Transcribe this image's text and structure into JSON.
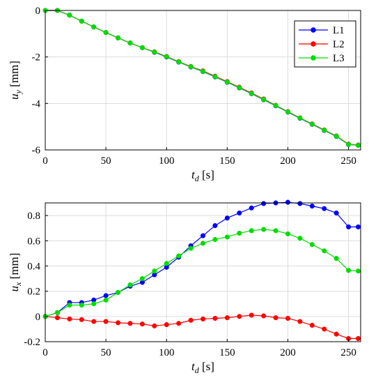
{
  "chart_data": [
    {
      "type": "line",
      "xlabel_main": "t",
      "xlabel_sub": "d",
      "xlabel_unit": "[s]",
      "ylabel_main": "u",
      "ylabel_sub": "y",
      "ylabel_unit": "[mm]",
      "xlim": [
        0,
        260
      ],
      "ylim": [
        -6,
        0
      ],
      "xticks": [
        0,
        50,
        100,
        150,
        200,
        250
      ],
      "yticks": [
        0,
        -2,
        -4,
        -6
      ],
      "grid": true,
      "legend": "top-right",
      "series": [
        {
          "name": "L1",
          "color": "#0000ff",
          "x": [
            0,
            10,
            20,
            30,
            40,
            50,
            60,
            70,
            80,
            90,
            100,
            110,
            120,
            130,
            140,
            150,
            160,
            170,
            180,
            190,
            200,
            210,
            220,
            230,
            240,
            250,
            258
          ],
          "y": [
            0,
            0,
            -0.2,
            -0.46,
            -0.71,
            -0.95,
            -1.18,
            -1.4,
            -1.6,
            -1.8,
            -2.0,
            -2.22,
            -2.43,
            -2.63,
            -2.86,
            -3.09,
            -3.33,
            -3.58,
            -3.84,
            -4.1,
            -4.37,
            -4.64,
            -4.9,
            -5.16,
            -5.42,
            -5.77,
            -5.8
          ]
        },
        {
          "name": "L2",
          "color": "#ff0000",
          "x": [
            0,
            10,
            20,
            30,
            40,
            50,
            60,
            70,
            80,
            90,
            100,
            110,
            120,
            130,
            140,
            150,
            160,
            170,
            180,
            190,
            200,
            210,
            220,
            230,
            240,
            250,
            258
          ],
          "y": [
            0,
            0,
            -0.2,
            -0.46,
            -0.71,
            -0.95,
            -1.18,
            -1.4,
            -1.6,
            -1.78,
            -1.98,
            -2.2,
            -2.41,
            -2.6,
            -2.83,
            -3.06,
            -3.3,
            -3.55,
            -3.81,
            -4.08,
            -4.35,
            -4.62,
            -4.88,
            -5.14,
            -5.4,
            -5.75,
            -5.79
          ]
        },
        {
          "name": "L3",
          "color": "#00dd00",
          "x": [
            0,
            10,
            20,
            30,
            40,
            50,
            60,
            70,
            80,
            90,
            100,
            110,
            120,
            130,
            140,
            150,
            160,
            170,
            180,
            190,
            200,
            210,
            220,
            230,
            240,
            250,
            258
          ],
          "y": [
            0,
            0,
            -0.2,
            -0.46,
            -0.71,
            -0.95,
            -1.18,
            -1.4,
            -1.6,
            -1.79,
            -1.99,
            -2.21,
            -2.42,
            -2.62,
            -2.85,
            -3.08,
            -3.32,
            -3.57,
            -3.83,
            -4.09,
            -4.36,
            -4.63,
            -4.89,
            -5.15,
            -5.41,
            -5.76,
            -5.8
          ]
        }
      ]
    },
    {
      "type": "line",
      "xlabel_main": "t",
      "xlabel_sub": "d",
      "xlabel_unit": "[s]",
      "ylabel_main": "u",
      "ylabel_sub": "x",
      "ylabel_unit": "[mm]",
      "xlim": [
        0,
        260
      ],
      "ylim": [
        -0.2,
        0.9
      ],
      "xticks": [
        0,
        50,
        100,
        150,
        200,
        250
      ],
      "yticks": [
        -0.2,
        0,
        0.2,
        0.4,
        0.6,
        0.8
      ],
      "grid": true,
      "series": [
        {
          "name": "L1",
          "color": "#0000ff",
          "x": [
            0,
            10,
            20,
            30,
            40,
            50,
            60,
            70,
            80,
            90,
            100,
            110,
            120,
            130,
            140,
            150,
            160,
            170,
            180,
            190,
            200,
            210,
            220,
            230,
            240,
            250,
            258
          ],
          "y": [
            0,
            0.03,
            0.11,
            0.11,
            0.13,
            0.165,
            0.19,
            0.24,
            0.27,
            0.33,
            0.39,
            0.47,
            0.56,
            0.64,
            0.72,
            0.78,
            0.82,
            0.86,
            0.895,
            0.9,
            0.905,
            0.895,
            0.875,
            0.855,
            0.82,
            0.71,
            0.71
          ]
        },
        {
          "name": "L2",
          "color": "#ff0000",
          "x": [
            0,
            10,
            20,
            30,
            40,
            50,
            60,
            70,
            80,
            90,
            100,
            110,
            120,
            130,
            140,
            150,
            160,
            170,
            180,
            190,
            200,
            210,
            220,
            230,
            240,
            250,
            258
          ],
          "y": [
            0,
            -0.01,
            -0.02,
            -0.025,
            -0.04,
            -0.04,
            -0.05,
            -0.055,
            -0.06,
            -0.075,
            -0.065,
            -0.055,
            -0.03,
            -0.02,
            -0.015,
            -0.01,
            0,
            0.01,
            0.005,
            -0.01,
            -0.015,
            -0.04,
            -0.07,
            -0.1,
            -0.14,
            -0.175,
            -0.175
          ]
        },
        {
          "name": "L3",
          "color": "#00dd00",
          "x": [
            0,
            10,
            20,
            30,
            40,
            50,
            60,
            70,
            80,
            90,
            100,
            110,
            120,
            130,
            140,
            150,
            160,
            170,
            180,
            190,
            200,
            210,
            220,
            230,
            240,
            250,
            258
          ],
          "y": [
            0,
            0.03,
            0.09,
            0.09,
            0.1,
            0.13,
            0.19,
            0.25,
            0.3,
            0.36,
            0.42,
            0.48,
            0.54,
            0.58,
            0.61,
            0.63,
            0.66,
            0.68,
            0.69,
            0.68,
            0.655,
            0.62,
            0.57,
            0.52,
            0.46,
            0.365,
            0.36
          ]
        }
      ]
    }
  ]
}
